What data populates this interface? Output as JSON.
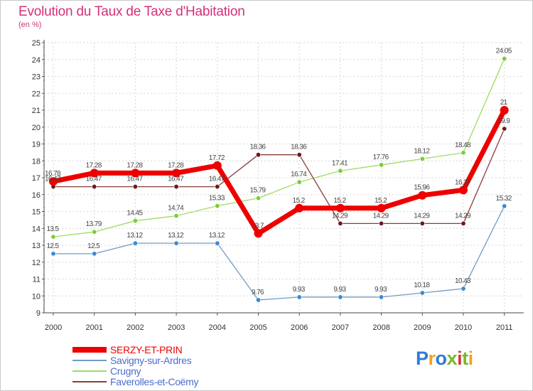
{
  "header": {
    "title": "Evolution du Taux de Taxe d'Habitation",
    "unit": "(en %)"
  },
  "logo": {
    "text": "Proxiti",
    "colors": [
      "#2e7bd6",
      "#f0a31c",
      "#2e7bd6",
      "#7ab82a",
      "#d63a2e",
      "#7ab82a",
      "#f0a31c"
    ]
  },
  "chart_data": {
    "type": "line",
    "x": [
      2000,
      2001,
      2002,
      2003,
      2004,
      2005,
      2006,
      2007,
      2008,
      2009,
      2010,
      2011
    ],
    "ylim": [
      9,
      25
    ],
    "yticks": [
      9,
      10,
      11,
      12,
      13,
      14,
      15,
      16,
      17,
      18,
      19,
      20,
      21,
      22,
      23,
      24,
      25
    ],
    "grid": true,
    "legend": "bottom-left",
    "series": [
      {
        "name": "SERZY-ET-PRIN",
        "values": [
          16.78,
          17.28,
          17.28,
          17.28,
          17.72,
          13.7,
          15.2,
          15.2,
          15.2,
          15.96,
          16.27,
          21
        ],
        "labels": [
          "16.78",
          "17.28",
          "17.28",
          "17.28",
          "17.72",
          "13.7",
          "15.2",
          "15.2",
          "15.2",
          "15.96",
          "16.27",
          "21"
        ],
        "color": "#ee0000",
        "marker": "#ee0000",
        "legend_color": "#ee0000"
      },
      {
        "name": "Savigny-sur-Ardres",
        "values": [
          12.5,
          12.5,
          13.12,
          13.12,
          13.12,
          9.76,
          9.93,
          9.93,
          9.93,
          10.18,
          10.43,
          15.32
        ],
        "labels": [
          "12.5",
          "12.5",
          "13.12",
          "13.12",
          "13.12",
          "9.76",
          "9.93",
          "9.93",
          "9.93",
          "10.18",
          "10.43",
          "15.32"
        ],
        "color": "#6e9cc8",
        "marker": "#3a8ad4",
        "legend_color": "#4a6cd0"
      },
      {
        "name": "Crugny",
        "values": [
          13.5,
          13.79,
          14.45,
          14.74,
          15.33,
          15.79,
          16.74,
          17.41,
          17.76,
          18.12,
          18.48,
          24.05
        ],
        "labels": [
          "13.5",
          "13.79",
          "14.45",
          "14.74",
          "15.33",
          "15.79",
          "16.74",
          "17.41",
          "17.76",
          "18.12",
          "18.48",
          "24.05"
        ],
        "color": "#9edc62",
        "marker": "#7acc3c",
        "legend_color": "#4a6cd0"
      },
      {
        "name": "Faverolles-et-Coëmy",
        "values": [
          16.47,
          16.47,
          16.47,
          16.47,
          16.47,
          18.36,
          18.36,
          14.29,
          14.29,
          14.29,
          14.29,
          19.9
        ],
        "labels": [
          "16.47",
          "16.47",
          "16.47",
          "16.47",
          "16.47",
          "18.36",
          "18.36",
          "14.29",
          "14.29",
          "14.29",
          "14.29",
          "19.9"
        ],
        "color": "#8a3c3c",
        "marker": "#6a1a1a",
        "legend_color": "#4a6cd0"
      }
    ]
  }
}
